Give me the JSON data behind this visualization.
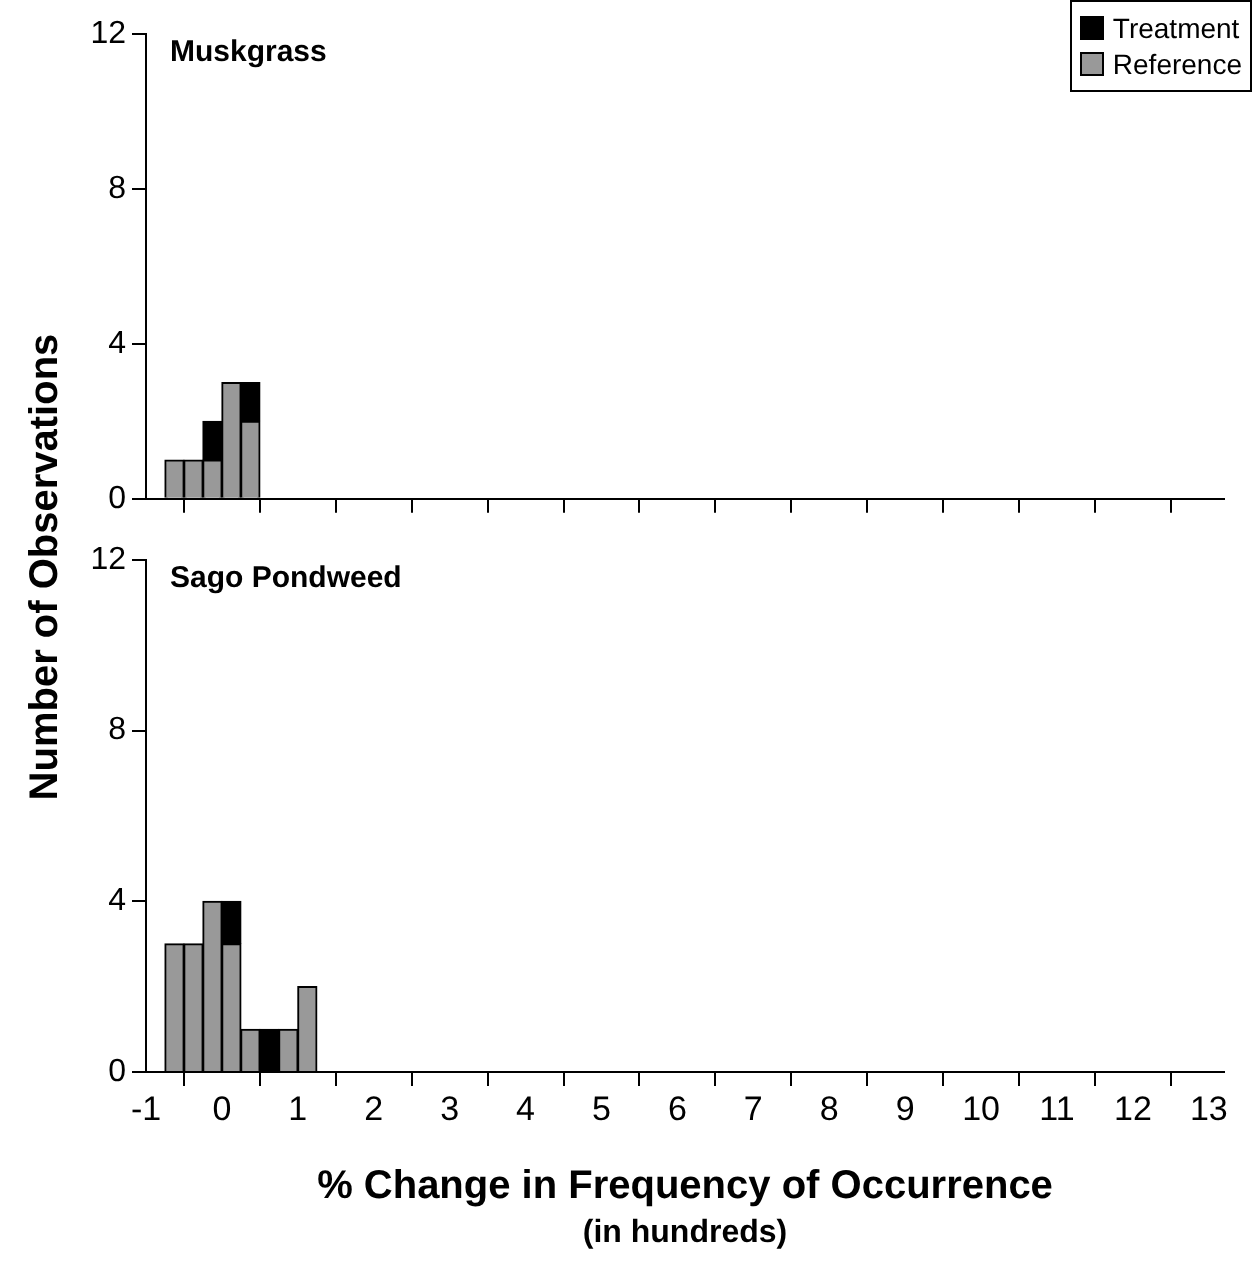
{
  "chart_data": [
    {
      "type": "bar",
      "title": "Muskgrass",
      "ylabel": "Number of Observations",
      "x": [
        -0.625,
        -0.375,
        -0.125,
        0.125,
        0.375
      ],
      "stacked": true,
      "series": [
        {
          "name": "Reference",
          "color": "#999999",
          "values": [
            1,
            1,
            1,
            3,
            2
          ]
        },
        {
          "name": "Treatment",
          "color": "#000000",
          "values": [
            0,
            0,
            1,
            0,
            1
          ]
        }
      ],
      "xlim": [
        -1,
        13.2
      ],
      "xticks": [
        -1,
        0,
        1,
        2,
        3,
        4,
        5,
        6,
        7,
        8,
        9,
        10,
        11,
        12,
        13
      ],
      "ylim": [
        0,
        12
      ],
      "yticks": [
        0,
        4,
        8,
        12
      ],
      "tick_labels": "y",
      "grid": false,
      "legend": "top right"
    },
    {
      "type": "bar",
      "title": "Sago Pondweed",
      "xlabel": "% Change in Frequency of Occurrence",
      "annotations": [
        "(in hundreds)"
      ],
      "x": [
        -0.625,
        -0.375,
        -0.125,
        0.125,
        0.375,
        0.625,
        0.875,
        1.125
      ],
      "stacked": true,
      "series": [
        {
          "color": "#999999",
          "values": [
            3,
            3,
            4,
            3,
            1,
            0,
            1,
            2
          ]
        },
        {
          "color": "#000000",
          "values": [
            0,
            0,
            0,
            1,
            0,
            1,
            0,
            0
          ]
        }
      ],
      "xlim": [
        -1,
        13.2
      ],
      "xticks": [
        -1,
        0,
        1,
        2,
        3,
        4,
        5,
        6,
        7,
        8,
        9,
        10,
        11,
        12,
        13
      ],
      "ylim": [
        0,
        12
      ],
      "yticks": [
        0,
        4,
        8,
        12
      ],
      "grid": false
    }
  ]
}
